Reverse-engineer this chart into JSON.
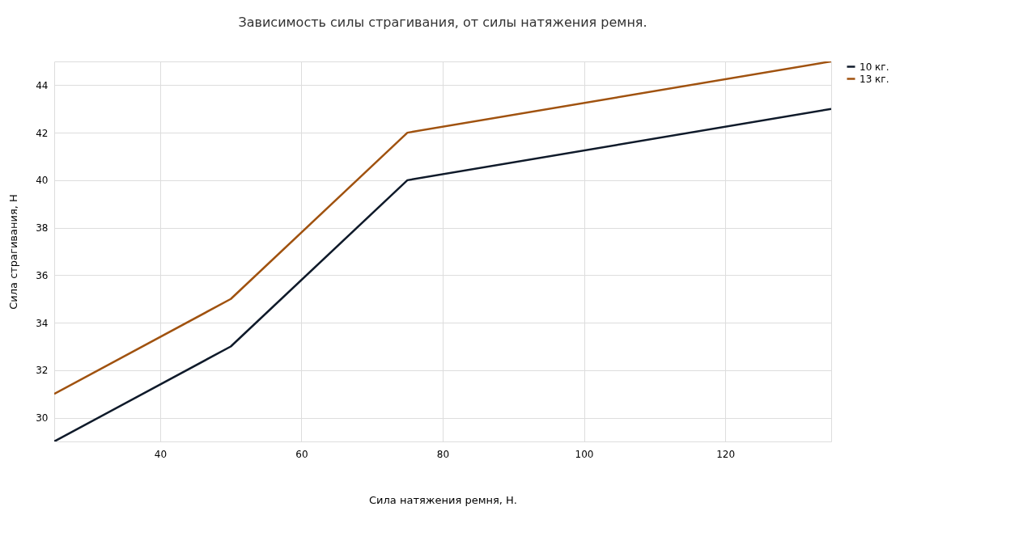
{
  "chart_data": {
    "type": "line",
    "title": "Зависимость силы страгивания, от силы натяжения ремня.",
    "xlabel": "Сила натяжения ремня, Н.",
    "ylabel": "Сила страгивания, Н",
    "x": [
      25,
      50,
      75,
      135
    ],
    "series": [
      {
        "name": "10 кг.",
        "color": "#0f1a2a",
        "values": [
          29,
          33,
          40,
          43
        ]
      },
      {
        "name": "13 кг.",
        "color": "#a0520f",
        "values": [
          31,
          35,
          42,
          45
        ]
      }
    ],
    "xlim": [
      25,
      135
    ],
    "xticks": [
      40,
      60,
      80,
      100,
      120
    ],
    "ylim": [
      29,
      45
    ],
    "yticks": [
      30,
      32,
      34,
      36,
      38,
      40,
      42,
      44
    ],
    "grid": true,
    "legend": "top right",
    "marker": "none",
    "line_style": "solid"
  }
}
